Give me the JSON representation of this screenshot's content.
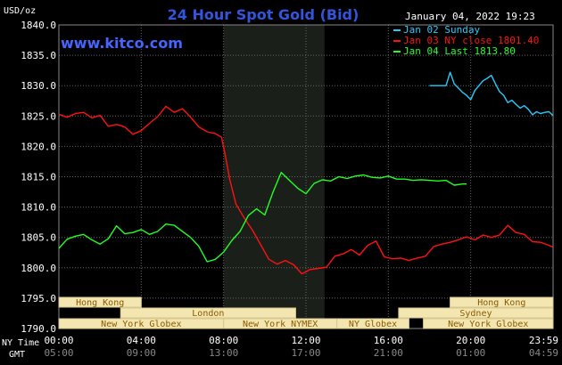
{
  "title": "24 Hour Spot Gold (Bid)",
  "unit_label": "USD/oz",
  "timestamp": "January 04, 2022 19:23",
  "watermark": "www.kitco.com",
  "colors": {
    "background": "#000000",
    "grid": "#666666",
    "title": "#3355dd",
    "watermark": "#4466ff",
    "highlight_band": "#1a1f1a",
    "series_jan02": "#22ccff",
    "series_jan03": "#ff1111",
    "series_jan04": "#22ff22",
    "session_fill": "#f3e6b0",
    "session_text": "#8a5a00"
  },
  "chart_data": {
    "type": "line",
    "title": "24 Hour Spot Gold (Bid)",
    "ylabel": "USD/oz",
    "xlabel": "",
    "ylim": [
      1790,
      1840
    ],
    "xlim": [
      0,
      24
    ],
    "grid": true,
    "legend_position": "top-right",
    "y_ticks": [
      "1840.0",
      "1835.0",
      "1830.0",
      "1825.0",
      "1820.0",
      "1815.0",
      "1810.0",
      "1805.0",
      "1800.0",
      "1795.0",
      "1790.0"
    ],
    "x_ticks_ny": [
      "00:00",
      "04:00",
      "08:00",
      "12:00",
      "16:00",
      "20:00",
      "23:59"
    ],
    "x_ticks_gmt": [
      "05:00",
      "09:00",
      "13:00",
      "17:00",
      "21:00",
      "01:00",
      "04:59"
    ],
    "x_row_labels": {
      "ny": "NY Time",
      "gmt": "GMT"
    },
    "highlight_range": [
      8,
      12.9
    ],
    "series": [
      {
        "name": "Jan 02 Sunday",
        "color": "#22ccff",
        "x": [
          18.0,
          18.8,
          19.0,
          19.2,
          19.4,
          19.6,
          19.8,
          20.0,
          20.2,
          20.4,
          20.6,
          20.8,
          21.0,
          21.2,
          21.4,
          21.6,
          21.8,
          22.0,
          22.2,
          22.4,
          22.6,
          22.8,
          23.0,
          23.2,
          23.4,
          23.6,
          23.8,
          23.99
        ],
        "y": [
          1830.0,
          1830.0,
          1832.2,
          1830.3,
          1829.6,
          1828.9,
          1828.4,
          1827.7,
          1829.2,
          1830.0,
          1830.8,
          1831.2,
          1831.7,
          1830.3,
          1829.0,
          1828.4,
          1827.2,
          1827.6,
          1826.9,
          1826.3,
          1826.7,
          1826.1,
          1825.2,
          1825.7,
          1825.4,
          1825.6,
          1825.7,
          1825.1
        ]
      },
      {
        "name": "Jan 03 NY close 1801.40",
        "color": "#ff1111",
        "x": [
          0.0,
          0.4,
          0.8,
          1.2,
          1.6,
          2.0,
          2.4,
          2.8,
          3.2,
          3.6,
          4.0,
          4.4,
          4.8,
          5.2,
          5.6,
          6.0,
          6.4,
          6.8,
          7.2,
          7.6,
          7.9,
          8.1,
          8.3,
          8.6,
          9.0,
          9.4,
          9.8,
          10.2,
          10.6,
          11.0,
          11.4,
          11.8,
          12.2,
          12.6,
          13.0,
          13.4,
          13.8,
          14.2,
          14.6,
          15.0,
          15.4,
          15.8,
          16.2,
          16.6,
          17.0,
          17.4,
          17.8,
          18.2,
          18.6,
          19.0,
          19.4,
          19.8,
          20.2,
          20.6,
          21.0,
          21.4,
          21.8,
          22.2,
          22.6,
          23.0,
          23.4,
          23.8,
          23.99
        ],
        "y": [
          1825.3,
          1824.8,
          1825.4,
          1825.6,
          1824.7,
          1825.1,
          1823.3,
          1823.6,
          1823.2,
          1822.0,
          1822.6,
          1823.8,
          1824.9,
          1826.6,
          1825.6,
          1826.2,
          1824.8,
          1823.2,
          1822.4,
          1822.1,
          1821.5,
          1818.2,
          1814.5,
          1810.5,
          1808.2,
          1806.2,
          1803.8,
          1801.4,
          1800.6,
          1801.2,
          1800.5,
          1799.0,
          1799.7,
          1799.9,
          1800.1,
          1801.9,
          1802.3,
          1803.0,
          1802.1,
          1803.7,
          1804.4,
          1801.8,
          1801.5,
          1801.6,
          1801.2,
          1801.6,
          1801.9,
          1803.5,
          1803.9,
          1804.2,
          1804.6,
          1805.1,
          1804.6,
          1805.4,
          1805.0,
          1805.4,
          1807.0,
          1805.8,
          1805.5,
          1804.3,
          1804.2,
          1803.7,
          1803.4
        ]
      },
      {
        "name": "Jan 04 Last 1813.80",
        "color": "#22ff22",
        "x": [
          0.0,
          0.4,
          0.8,
          1.2,
          1.6,
          2.0,
          2.4,
          2.8,
          3.2,
          3.6,
          4.0,
          4.4,
          4.8,
          5.2,
          5.6,
          6.0,
          6.4,
          6.8,
          7.2,
          7.6,
          8.0,
          8.4,
          8.8,
          9.2,
          9.6,
          10.0,
          10.4,
          10.8,
          11.2,
          11.6,
          12.0,
          12.4,
          12.8,
          13.2,
          13.6,
          14.0,
          14.4,
          14.8,
          15.2,
          15.6,
          16.0,
          16.4,
          16.8,
          17.2,
          17.6,
          18.0,
          18.4,
          18.8,
          19.2,
          19.6,
          19.8
        ],
        "y": [
          1803.2,
          1804.7,
          1805.2,
          1805.5,
          1804.6,
          1803.9,
          1804.8,
          1806.9,
          1805.6,
          1805.8,
          1806.3,
          1805.5,
          1806.0,
          1807.2,
          1807.0,
          1806.0,
          1805.0,
          1803.5,
          1801.0,
          1801.4,
          1802.6,
          1804.5,
          1806.0,
          1808.6,
          1809.7,
          1808.7,
          1812.5,
          1815.7,
          1814.4,
          1813.1,
          1812.2,
          1813.9,
          1814.5,
          1814.3,
          1815.0,
          1814.7,
          1815.1,
          1815.3,
          1814.9,
          1814.8,
          1815.1,
          1814.6,
          1814.6,
          1814.4,
          1814.5,
          1814.4,
          1814.3,
          1814.4,
          1813.6,
          1813.8,
          1813.8
        ]
      }
    ]
  },
  "sessions": [
    {
      "label": "Hong Kong",
      "start": 0,
      "end": 4.0,
      "row": 0
    },
    {
      "label": "London",
      "start": 3.0,
      "end": 11.5,
      "row": 1
    },
    {
      "label": "New York Globex",
      "start": 0,
      "end": 8.0,
      "row": 2
    },
    {
      "label": "New York NYMEX",
      "start": 8.0,
      "end": 13.5,
      "row": 2
    },
    {
      "label": "NY Globex",
      "start": 13.5,
      "end": 17.0,
      "row": 2
    },
    {
      "label": "Hong Kong",
      "start": 19.0,
      "end": 24.0,
      "row": 0
    },
    {
      "label": "Sydney",
      "start": 16.5,
      "end": 24.0,
      "row": 1
    },
    {
      "label": "New York Globex",
      "start": 17.7,
      "end": 24.0,
      "row": 2
    }
  ]
}
